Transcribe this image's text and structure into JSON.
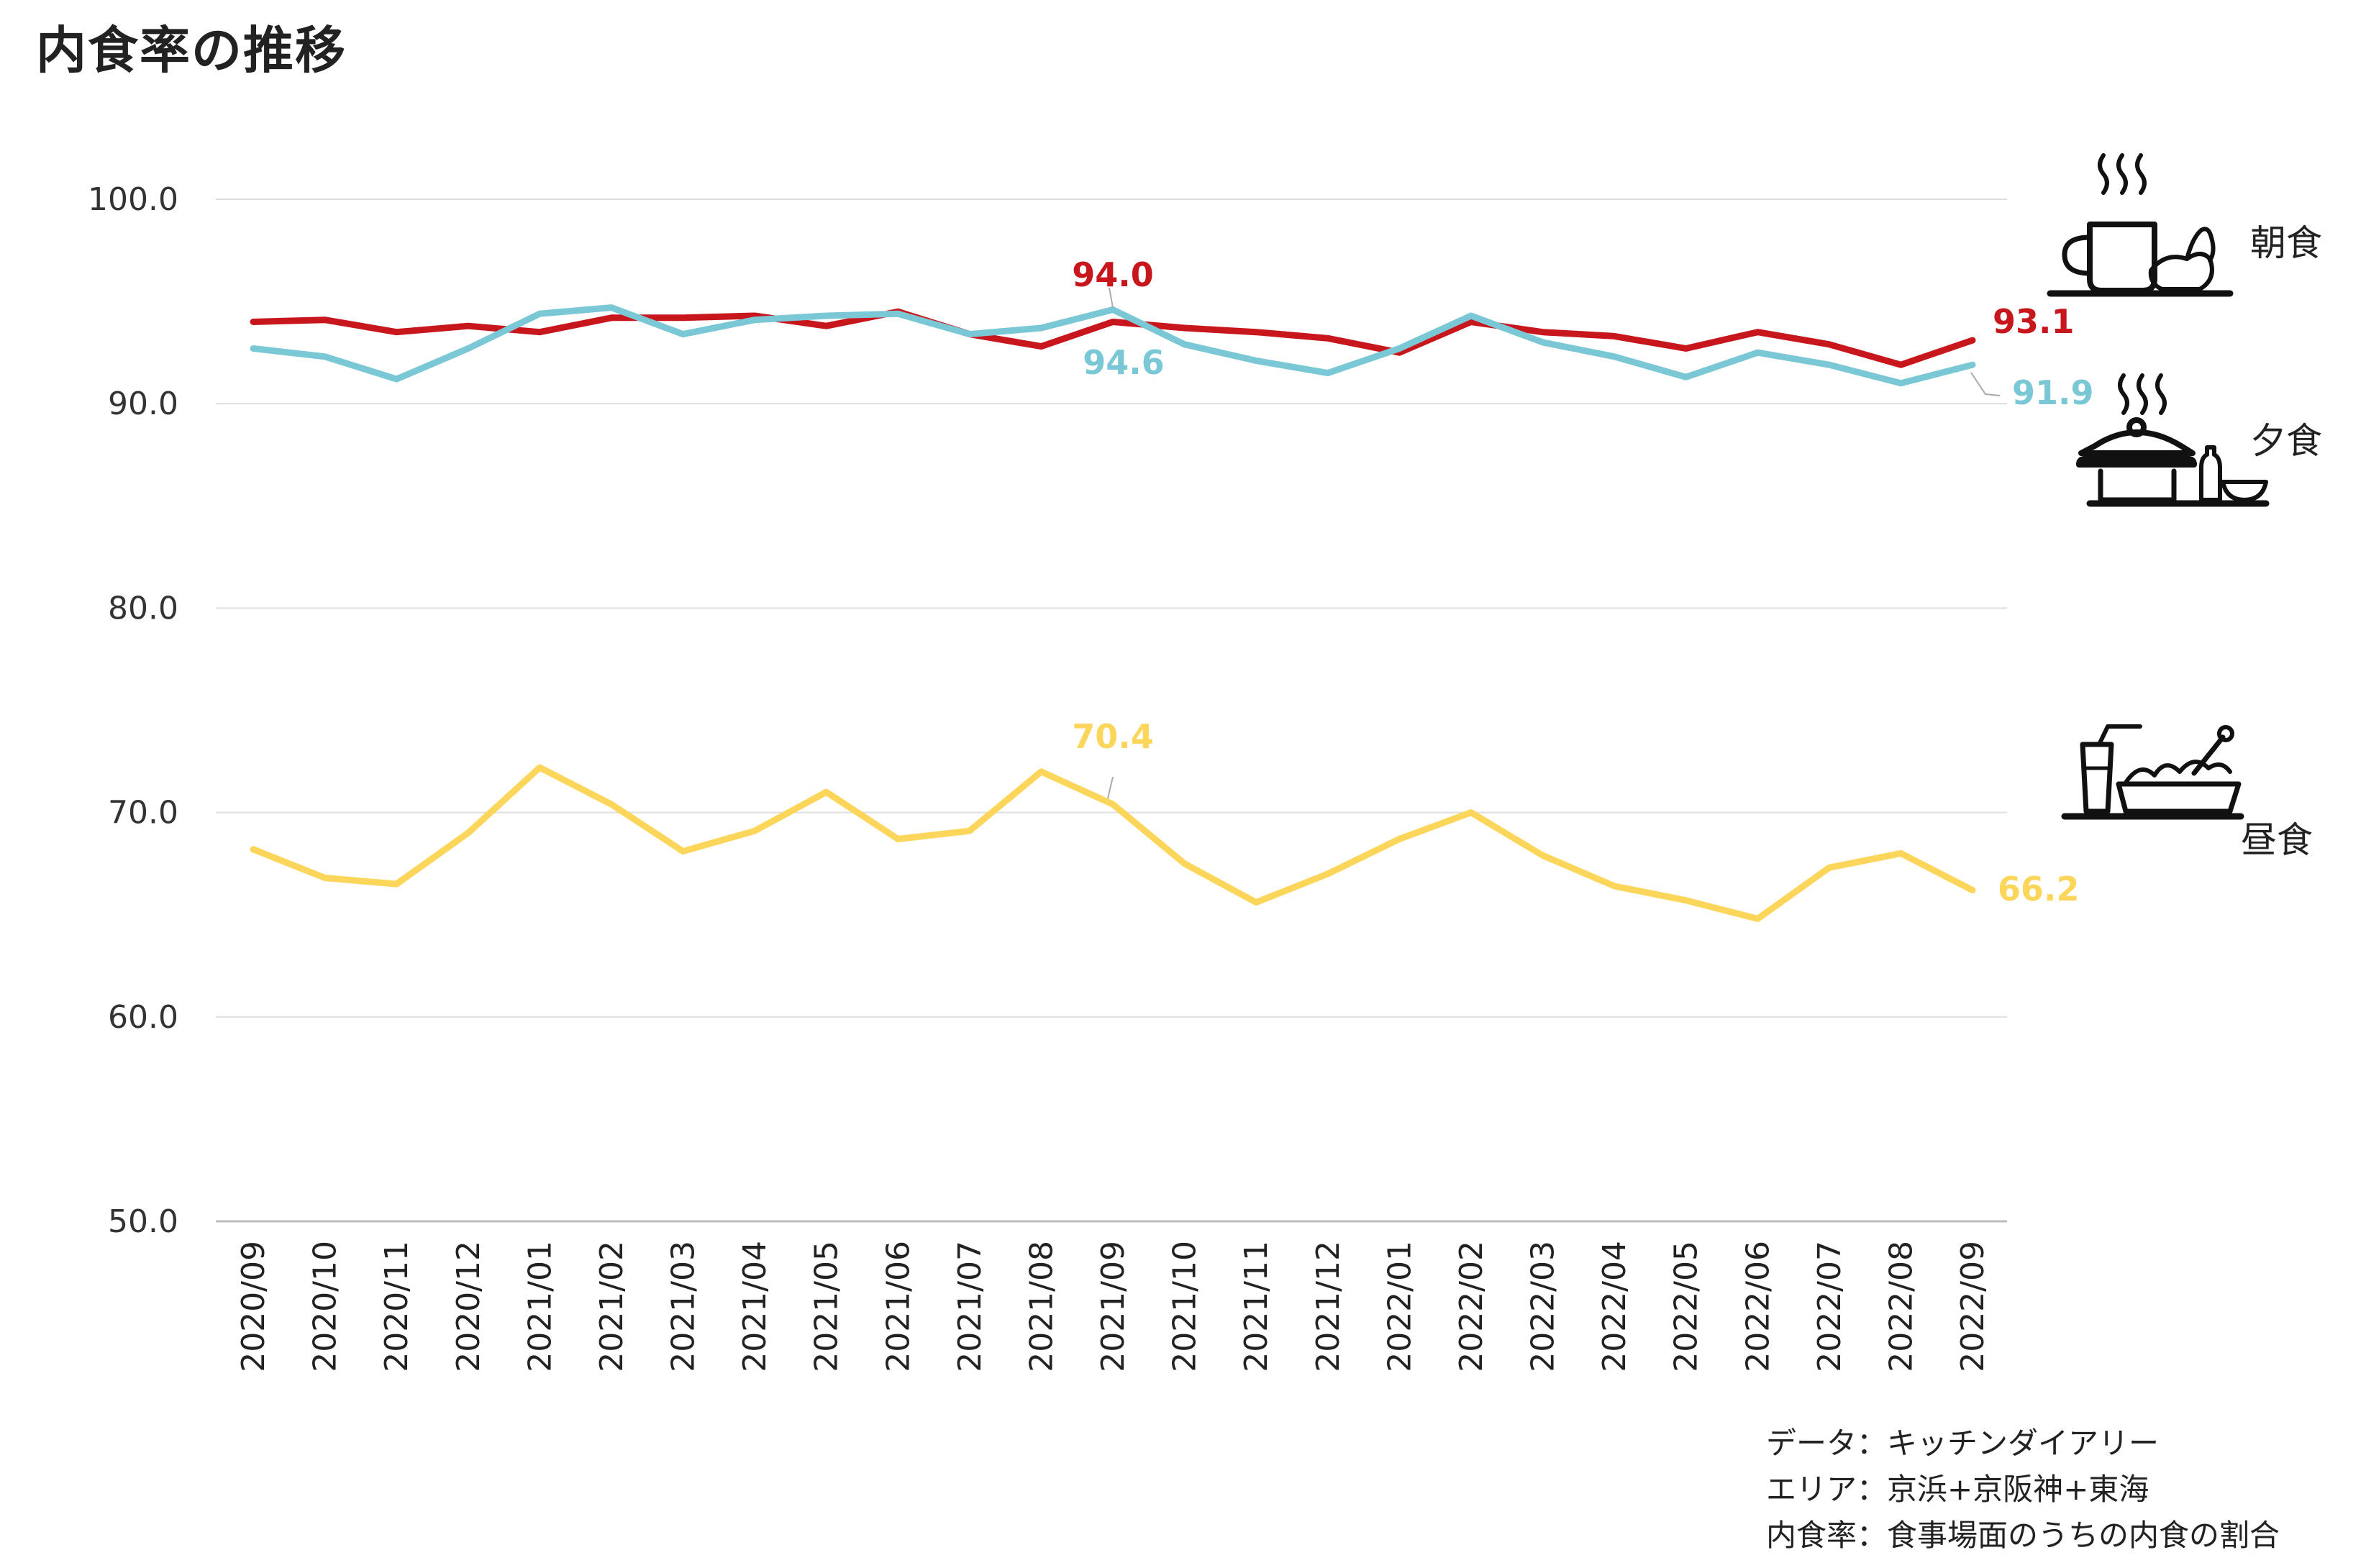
{
  "chart_data": {
    "type": "line",
    "title": "内食率の推移",
    "xlabel": "",
    "ylabel": "",
    "ylim": [
      50,
      100
    ],
    "yticks": [
      "100.0",
      "90.0",
      "80.0",
      "70.0",
      "60.0",
      "50.0"
    ],
    "grid": true,
    "categories": [
      "2020/09",
      "2020/10",
      "2020/11",
      "2020/12",
      "2021/01",
      "2021/02",
      "2021/03",
      "2021/04",
      "2021/05",
      "2021/06",
      "2021/07",
      "2021/08",
      "2021/09",
      "2021/10",
      "2021/11",
      "2021/12",
      "2022/01",
      "2022/02",
      "2022/03",
      "2022/04",
      "2022/05",
      "2022/06",
      "2022/07",
      "2022/08",
      "2022/09"
    ],
    "series": [
      {
        "name": "朝食",
        "color": "#c8161d",
        "icon": "breakfast-icon",
        "values": [
          94.0,
          94.1,
          93.5,
          93.8,
          93.5,
          94.2,
          94.2,
          94.3,
          93.8,
          94.5,
          93.4,
          92.8,
          94.0,
          93.7,
          93.5,
          93.2,
          92.5,
          94.0,
          93.5,
          93.3,
          92.7,
          93.5,
          92.9,
          91.9,
          93.1
        ],
        "labels": [
          {
            "index": 12,
            "text": "94.0"
          },
          {
            "index": 24,
            "text": "93.1"
          }
        ]
      },
      {
        "name": "夕食",
        "color": "#7ac7d5",
        "icon": "dinner-icon",
        "values": [
          92.7,
          92.3,
          91.2,
          92.7,
          94.4,
          94.7,
          93.4,
          94.1,
          94.3,
          94.4,
          93.4,
          93.7,
          94.6,
          92.9,
          92.1,
          91.5,
          92.7,
          94.3,
          93.0,
          92.3,
          91.3,
          92.5,
          91.9,
          91.0,
          91.9
        ],
        "labels": [
          {
            "index": 12,
            "text": "94.6"
          },
          {
            "index": 24,
            "text": "91.9"
          }
        ]
      },
      {
        "name": "昼食",
        "color": "#fcd65a",
        "icon": "lunch-icon",
        "values": [
          68.2,
          66.8,
          66.5,
          69.0,
          72.2,
          70.4,
          68.1,
          69.1,
          71.0,
          68.7,
          69.1,
          72.0,
          70.4,
          67.5,
          65.6,
          67.0,
          68.7,
          70.0,
          67.9,
          66.4,
          65.7,
          64.8,
          67.3,
          68.0,
          66.2
        ],
        "labels": [
          {
            "index": 12,
            "text": "70.4"
          },
          {
            "index": 24,
            "text": "66.2"
          }
        ]
      }
    ]
  },
  "notes": [
    "データ：キッチンダイアリー",
    "エリア：京浜+京阪神+東海",
    "内食率：食事場面のうちの内食の割合"
  ]
}
